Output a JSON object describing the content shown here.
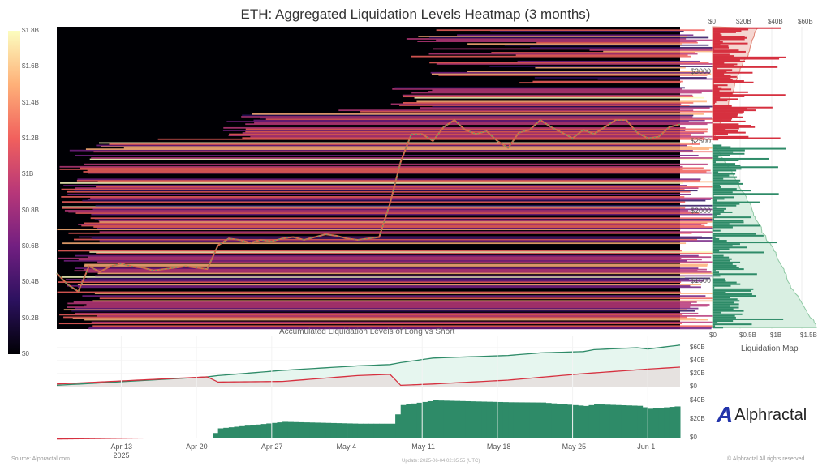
{
  "chart_data": {
    "type": "heatmap",
    "title": "ETH: Aggregated Liquidation Levels Heatmap (3 months)",
    "colorbar": {
      "ticks": [
        "$0",
        "$0.2B",
        "$0.4B",
        "$0.6B",
        "$0.8B",
        "$1B",
        "$1.2B",
        "$1.4B",
        "$1.6B",
        "$1.8B"
      ],
      "range": [
        0,
        1.8
      ]
    },
    "price_axis": {
      "ticks": [
        "$1500",
        "$2000",
        "$2500",
        "$3000"
      ],
      "values": [
        1500,
        2000,
        2500,
        3000
      ],
      "range": [
        1150,
        3320
      ]
    },
    "x_ticks": [
      {
        "label": "Apr 13",
        "day": 6
      },
      {
        "label": "Apr 20",
        "day": 13
      },
      {
        "label": "Apr 27",
        "day": 20
      },
      {
        "label": "May 4",
        "day": 27
      },
      {
        "label": "May 11",
        "day": 34
      },
      {
        "label": "May 18",
        "day": 41
      },
      {
        "label": "May 25",
        "day": 48
      },
      {
        "label": "Jun 1",
        "day": 55
      }
    ],
    "year_label": "2025",
    "start_date": "Apr 7",
    "eth_price": [
      1550,
      1470,
      1420,
      1600,
      1560,
      1600,
      1620,
      1600,
      1590,
      1570,
      1580,
      1590,
      1600,
      1590,
      1580,
      1750,
      1800,
      1790,
      1770,
      1790,
      1780,
      1800,
      1810,
      1790,
      1810,
      1830,
      1820,
      1800,
      1790,
      1800,
      1810,
      2050,
      2350,
      2550,
      2550,
      2500,
      2600,
      2650,
      2580,
      2550,
      2570,
      2500,
      2450,
      2560,
      2580,
      2650,
      2600,
      2560,
      2520,
      2580,
      2550,
      2600,
      2650,
      2650,
      2560,
      2520,
      2530,
      2600,
      2620
    ],
    "liquidation_map": {
      "title": "Liquidation Map",
      "top_ticks": [
        "$0",
        "$20B",
        "$40B",
        "$60B"
      ],
      "bottom_ticks": [
        "$0",
        "$0.5B",
        "$1B",
        "$1.5B"
      ],
      "short_color": "#d6303f",
      "long_color": "#2e8b68",
      "split_price": 2480
    },
    "accumulated": {
      "title": "Accumulated Liquidation Levels of Long vs Short",
      "ticks": [
        "$0",
        "$20B",
        "$40B",
        "$60B"
      ],
      "tick_values": [
        0,
        20,
        40,
        60
      ],
      "long": [
        [
          0,
          2
        ],
        [
          14,
          15
        ],
        [
          15,
          17
        ],
        [
          21,
          25
        ],
        [
          28,
          32
        ],
        [
          31,
          34
        ],
        [
          32,
          37
        ],
        [
          35,
          44
        ],
        [
          42,
          48
        ],
        [
          45,
          52
        ],
        [
          49,
          54
        ],
        [
          50,
          57
        ],
        [
          54,
          60
        ],
        [
          55,
          58
        ],
        [
          58,
          64
        ]
      ],
      "short": [
        [
          0,
          4
        ],
        [
          14,
          15
        ],
        [
          15,
          7
        ],
        [
          21,
          8
        ],
        [
          28,
          17
        ],
        [
          31,
          19
        ],
        [
          32,
          2
        ],
        [
          35,
          4
        ],
        [
          42,
          10
        ],
        [
          49,
          20
        ],
        [
          55,
          27
        ],
        [
          58,
          30
        ]
      ],
      "long_color": "#2e8b68",
      "short_color": "#d6303f"
    },
    "delta": {
      "ticks": [
        "$0",
        "$20B",
        "$40B"
      ],
      "tick_values": [
        0,
        20,
        40
      ]
    }
  },
  "brand": "Alphractal",
  "footer": {
    "source": "Source: Alphractal.com",
    "update": "Update: 2025-06-04 02:35:55 (UTC)",
    "rights": "© Alphractal All rights reserved"
  }
}
